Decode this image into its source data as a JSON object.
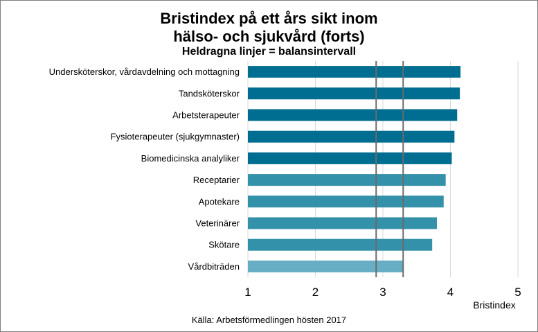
{
  "chart_data": {
    "type": "bar",
    "orientation": "horizontal",
    "title": "Bristindex på ett års sikt inom",
    "title_line2": "hälso- och sjukvård (forts)",
    "subtitle": "Heldragna linjer = balansintervall",
    "xlabel": "Bristindex",
    "xlim": [
      1,
      5
    ],
    "xticks": [
      "1",
      "2",
      "3",
      "4",
      "5"
    ],
    "grid": true,
    "categories": [
      "Undersköterskor, vårdavdelning och mottagning",
      "Tandsköterskor",
      "Arbetsterapeuter",
      "Fysioterapeuter (sjukgymnaster)",
      "Biomedicinska analyliker",
      "Receptarier",
      "Apotekare",
      "Veterinärer",
      "Skötare",
      "Vårdbiträden"
    ],
    "values": [
      4.15,
      4.14,
      4.1,
      4.06,
      4.02,
      3.93,
      3.9,
      3.8,
      3.73,
      3.3
    ],
    "bar_colors": [
      "#006e91",
      "#006e91",
      "#006e91",
      "#006e91",
      "#006e91",
      "#3491aa",
      "#3491aa",
      "#3491aa",
      "#3491aa",
      "#67adc4"
    ],
    "balance_interval": [
      2.9,
      3.3
    ],
    "source": "Källa: Arbetsförmedlingen hösten 2017"
  }
}
